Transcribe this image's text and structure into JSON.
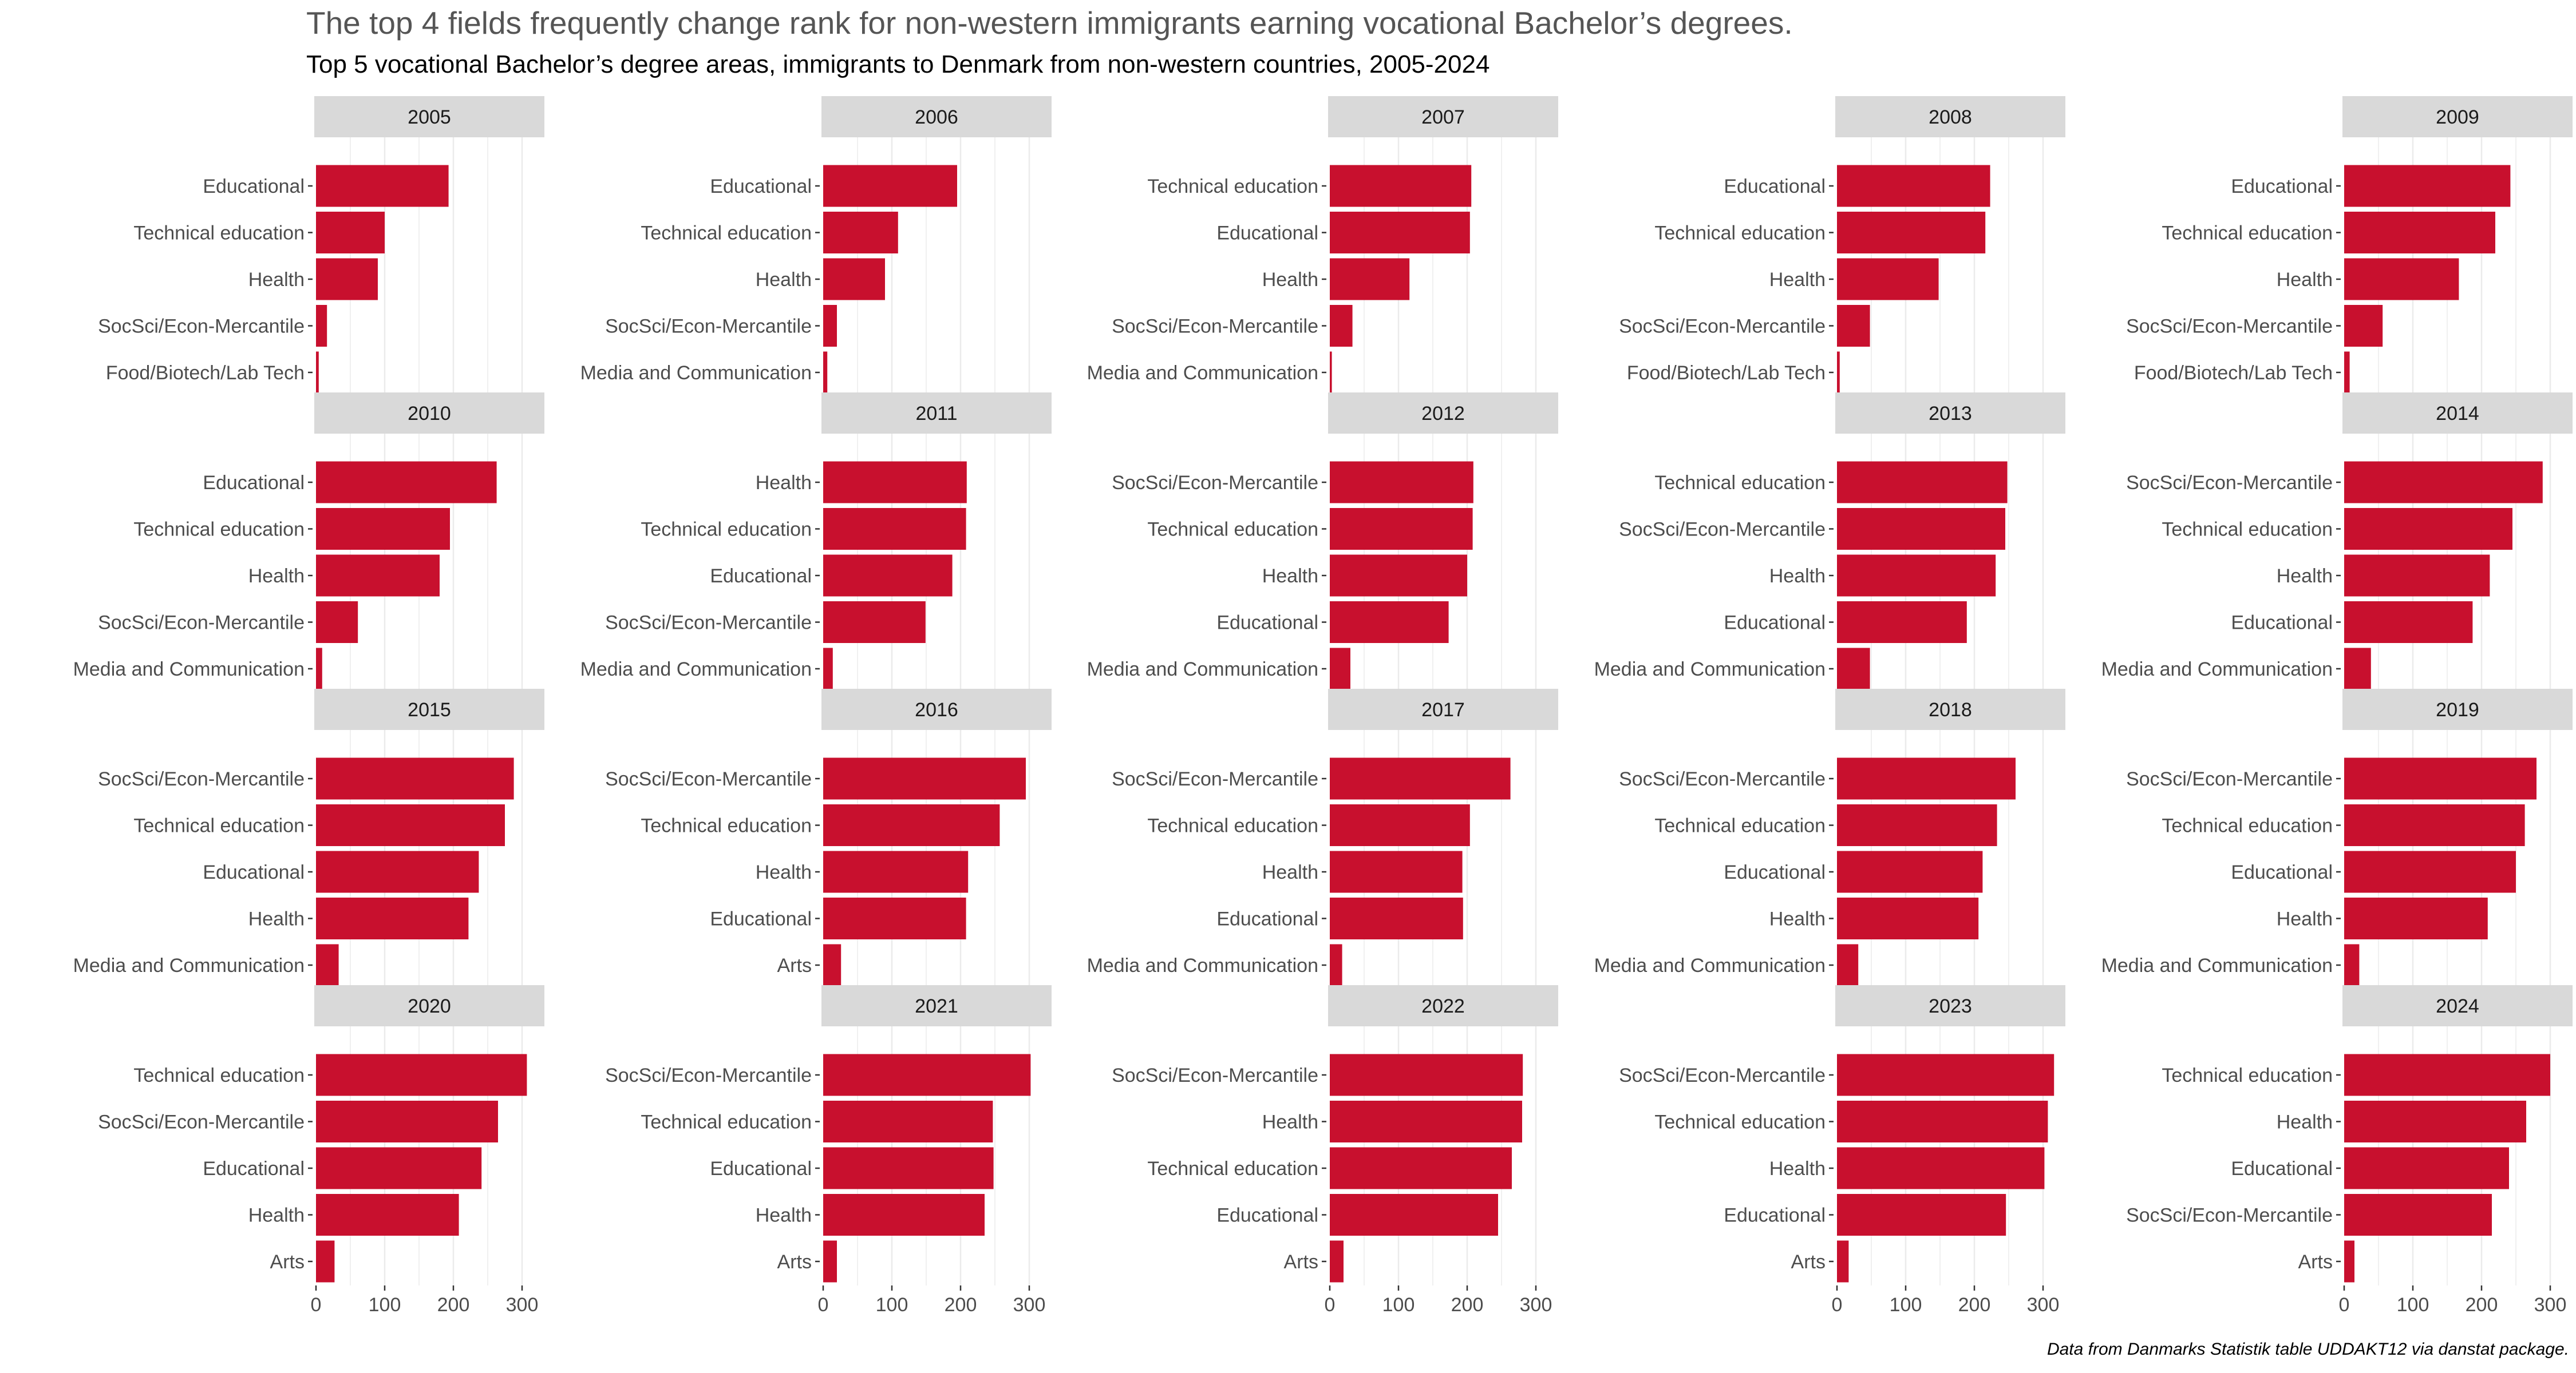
{
  "title": "The top 4 fields frequently change rank for non-western immigrants earning vocational Bachelor’s degrees.",
  "subtitle": "Top 5 vocational Bachelor’s degree areas, immigrants to Denmark from non-western countries, 2005-2024",
  "caption": "Data from Danmarks Statistik table UDDAKT12 via danstat package.",
  "colors": {
    "bar": "#C8102E",
    "strip": "#D9D9D9",
    "grid": "#EBEBEB",
    "axis_text": "#4D4D4D"
  },
  "chart_data": {
    "type": "bar",
    "orientation": "horizontal",
    "facet_layout": {
      "columns": 5,
      "rows": 4
    },
    "x_ticks": [
      0,
      100,
      200,
      300
    ],
    "xlim": [
      0,
      330
    ],
    "grid": true,
    "panels": [
      {
        "year": "2005",
        "categories": [
          "Educational",
          "Technical education",
          "Health",
          "SocSci/Econ-Mercantile",
          "Food/Biotech/Lab Tech"
        ],
        "values": [
          193,
          100,
          90,
          16,
          4
        ]
      },
      {
        "year": "2006",
        "categories": [
          "Educational",
          "Technical education",
          "Health",
          "SocSci/Econ-Mercantile",
          "Media and Communication"
        ],
        "values": [
          195,
          109,
          90,
          20,
          6
        ]
      },
      {
        "year": "2007",
        "categories": [
          "Technical education",
          "Educational",
          "Health",
          "SocSci/Econ-Mercantile",
          "Media and Communication"
        ],
        "values": [
          206,
          204,
          116,
          33,
          3
        ]
      },
      {
        "year": "2008",
        "categories": [
          "Educational",
          "Technical education",
          "Health",
          "SocSci/Econ-Mercantile",
          "Food/Biotech/Lab Tech"
        ],
        "values": [
          223,
          216,
          148,
          48,
          4
        ]
      },
      {
        "year": "2009",
        "categories": [
          "Educational",
          "Technical education",
          "Health",
          "SocSci/Econ-Mercantile",
          "Food/Biotech/Lab Tech"
        ],
        "values": [
          242,
          220,
          167,
          56,
          8
        ]
      },
      {
        "year": "2010",
        "categories": [
          "Educational",
          "Technical education",
          "Health",
          "SocSci/Econ-Mercantile",
          "Media and Communication"
        ],
        "values": [
          263,
          195,
          180,
          61,
          9
        ]
      },
      {
        "year": "2011",
        "categories": [
          "Health",
          "Technical education",
          "Educational",
          "SocSci/Econ-Mercantile",
          "Media and Communication"
        ],
        "values": [
          209,
          208,
          188,
          149,
          14
        ]
      },
      {
        "year": "2012",
        "categories": [
          "SocSci/Econ-Mercantile",
          "Technical education",
          "Health",
          "Educational",
          "Media and Communication"
        ],
        "values": [
          209,
          208,
          200,
          173,
          30
        ]
      },
      {
        "year": "2013",
        "categories": [
          "Technical education",
          "SocSci/Econ-Mercantile",
          "Health",
          "Educational",
          "Media and Communication"
        ],
        "values": [
          248,
          245,
          231,
          189,
          48
        ]
      },
      {
        "year": "2014",
        "categories": [
          "SocSci/Econ-Mercantile",
          "Technical education",
          "Health",
          "Educational",
          "Media and Communication"
        ],
        "values": [
          289,
          245,
          212,
          187,
          39
        ]
      },
      {
        "year": "2015",
        "categories": [
          "SocSci/Econ-Mercantile",
          "Technical education",
          "Educational",
          "Health",
          "Media and Communication"
        ],
        "values": [
          288,
          275,
          237,
          222,
          33
        ]
      },
      {
        "year": "2016",
        "categories": [
          "SocSci/Econ-Mercantile",
          "Technical education",
          "Health",
          "Educational",
          "Arts"
        ],
        "values": [
          295,
          257,
          211,
          208,
          26
        ]
      },
      {
        "year": "2017",
        "categories": [
          "SocSci/Econ-Mercantile",
          "Technical education",
          "Health",
          "Educational",
          "Media and Communication"
        ],
        "values": [
          263,
          204,
          193,
          194,
          18
        ]
      },
      {
        "year": "2018",
        "categories": [
          "SocSci/Econ-Mercantile",
          "Technical education",
          "Educational",
          "Health",
          "Media and Communication"
        ],
        "values": [
          260,
          233,
          212,
          206,
          31
        ]
      },
      {
        "year": "2019",
        "categories": [
          "SocSci/Econ-Mercantile",
          "Technical education",
          "Educational",
          "Health",
          "Media and Communication"
        ],
        "values": [
          280,
          263,
          250,
          209,
          22
        ]
      },
      {
        "year": "2020",
        "categories": [
          "Technical education",
          "SocSci/Econ-Mercantile",
          "Educational",
          "Health",
          "Arts"
        ],
        "values": [
          307,
          265,
          241,
          208,
          27
        ]
      },
      {
        "year": "2021",
        "categories": [
          "SocSci/Econ-Mercantile",
          "Technical education",
          "Educational",
          "Health",
          "Arts"
        ],
        "values": [
          302,
          247,
          248,
          235,
          20
        ]
      },
      {
        "year": "2022",
        "categories": [
          "SocSci/Econ-Mercantile",
          "Health",
          "Technical education",
          "Educational",
          "Arts"
        ],
        "values": [
          281,
          280,
          265,
          245,
          20
        ]
      },
      {
        "year": "2023",
        "categories": [
          "SocSci/Econ-Mercantile",
          "Technical education",
          "Health",
          "Educational",
          "Arts"
        ],
        "values": [
          316,
          307,
          302,
          246,
          17
        ]
      },
      {
        "year": "2024",
        "categories": [
          "Technical education",
          "Health",
          "Educational",
          "SocSci/Econ-Mercantile",
          "Arts"
        ],
        "values": [
          300,
          265,
          240,
          215,
          15
        ]
      }
    ]
  }
}
